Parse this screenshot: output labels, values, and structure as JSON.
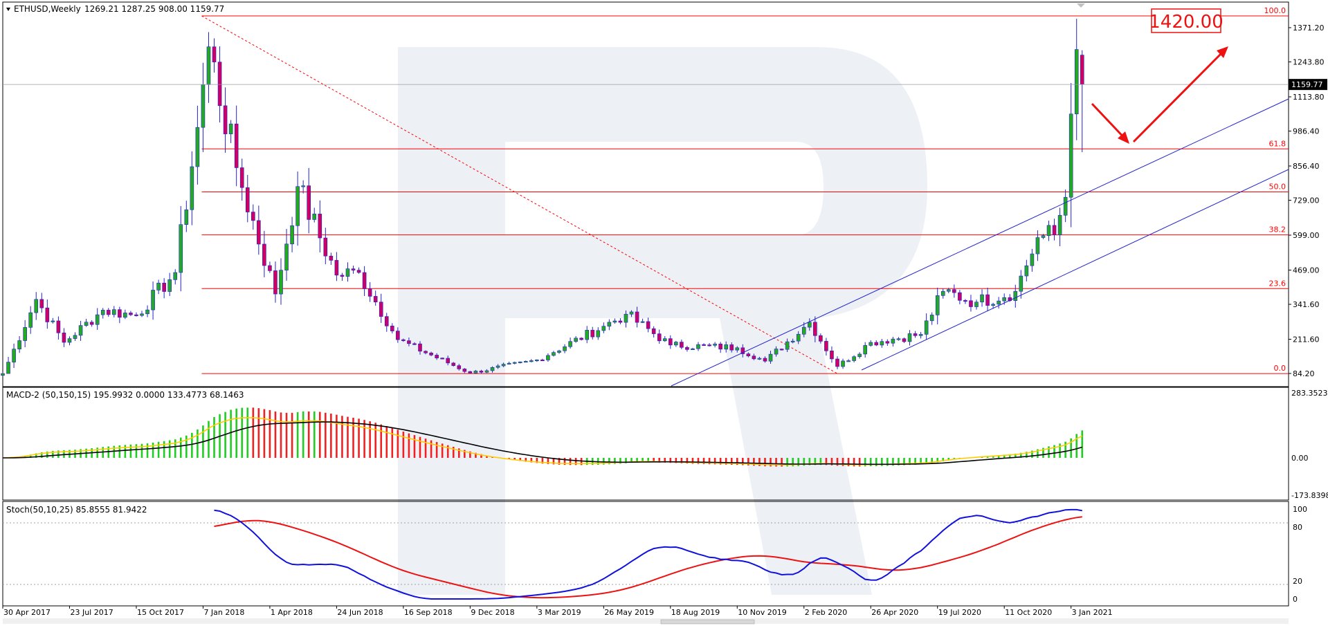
{
  "header": {
    "symbol": "ETHUSD,Weekly",
    "ohlc": "1269.21 1287.25 908.00 1159.77"
  },
  "colors": {
    "background": "#ffffff",
    "frame": "#000000",
    "bull_candle": "#22aa22",
    "bear_candle": "#cc0066",
    "candle_wick": "#2222cc",
    "fib_line": "#ff0000",
    "trend_line": "#2222cc",
    "arrow": "#ee1111",
    "macd_signal": "#ffcc00",
    "macd_line": "#000000",
    "hist_up": "#22cc22",
    "hist_down": "#ee2222",
    "stoch_main": "#1111dd",
    "stoch_signal": "#ee1111",
    "watermark": "#dfe5ee"
  },
  "main": {
    "price_labels": [
      "1371.20",
      "1243.80",
      "1113.80",
      "986.40",
      "856.40",
      "729.00",
      "599.00",
      "469.00",
      "341.60",
      "211.60",
      "84.20"
    ],
    "current_price": "1159.77",
    "target_label": "1420.00",
    "fib_levels": [
      {
        "label": "100.0",
        "price": 1415
      },
      {
        "label": "61.8",
        "price": 920
      },
      {
        "label": "50.0",
        "price": 760
      },
      {
        "label": "38.2",
        "price": 600
      },
      {
        "label": "23.6",
        "price": 400
      },
      {
        "label": "0.0",
        "price": 84
      }
    ]
  },
  "macd": {
    "label": "MACD-2 (50,150,15) 195.9932 0.0000 133.4773 68.1463",
    "scale": [
      "283.3523",
      "0.00",
      "-173.8398"
    ]
  },
  "stoch": {
    "label": "Stoch(50,10,25) 85.8555 81.9422",
    "scale": [
      "100",
      "80",
      "20",
      "0"
    ]
  },
  "time_labels": [
    "30 Apr 2017",
    "23 Jul 2017",
    "15 Oct 2017",
    "7 Jan 2018",
    "1 Apr 2018",
    "24 Jun 2018",
    "16 Sep 2018",
    "9 Dec 2018",
    "3 Mar 2019",
    "26 May 2019",
    "18 Aug 2019",
    "10 Nov 2019",
    "2 Feb 2020",
    "26 Apr 2020",
    "19 Jul 2020",
    "11 Oct 2020",
    "3 Jan 2021"
  ],
  "chart_data": {
    "type": "candlestick",
    "timeframe": "Weekly",
    "series": [
      {
        "name": "ETHUSD",
        "anchors": [
          {
            "date": "2017-04-30",
            "close": 80
          },
          {
            "date": "2017-06-11",
            "close": 360
          },
          {
            "date": "2017-07-16",
            "close": 200
          },
          {
            "date": "2017-09-03",
            "close": 320
          },
          {
            "date": "2017-10-15",
            "close": 300
          },
          {
            "date": "2017-12-03",
            "close": 460
          },
          {
            "date": "2017-12-31",
            "close": 1000
          },
          {
            "date": "2018-01-14",
            "close": 1300
          },
          {
            "date": "2018-02-18",
            "close": 850
          },
          {
            "date": "2018-04-08",
            "close": 380
          },
          {
            "date": "2018-05-06",
            "close": 780
          },
          {
            "date": "2018-06-24",
            "close": 450
          },
          {
            "date": "2018-07-22",
            "close": 460
          },
          {
            "date": "2018-09-09",
            "close": 210
          },
          {
            "date": "2018-12-09",
            "close": 86
          },
          {
            "date": "2019-03-03",
            "close": 135
          },
          {
            "date": "2019-05-26",
            "close": 260
          },
          {
            "date": "2019-06-23",
            "close": 305
          },
          {
            "date": "2019-08-18",
            "close": 190
          },
          {
            "date": "2019-11-10",
            "close": 180
          },
          {
            "date": "2019-12-15",
            "close": 130
          },
          {
            "date": "2020-02-09",
            "close": 275
          },
          {
            "date": "2020-03-15",
            "close": 110
          },
          {
            "date": "2020-04-26",
            "close": 200
          },
          {
            "date": "2020-06-28",
            "close": 230
          },
          {
            "date": "2020-07-26",
            "close": 390
          },
          {
            "date": "2020-09-06",
            "close": 350
          },
          {
            "date": "2020-10-25",
            "close": 390
          },
          {
            "date": "2020-11-22",
            "close": 590
          },
          {
            "date": "2020-12-13",
            "close": 600
          },
          {
            "date": "2020-12-27",
            "close": 740
          },
          {
            "date": "2021-01-03",
            "close": 1050
          },
          {
            "date": "2021-01-10",
            "close": 1290
          },
          {
            "date": "2021-01-17",
            "close": 1159.77
          }
        ]
      }
    ],
    "last_candle": {
      "open": 1269.21,
      "high": 1287.25,
      "low": 908.0,
      "close": 1159.77
    },
    "fibonacci": {
      "high": 1415,
      "low": 84,
      "levels": [
        "0.0",
        "23.6",
        "38.2",
        "50.0",
        "61.8",
        "100.0"
      ]
    },
    "macd": {
      "params": "50,150,15",
      "values": [
        195.9932,
        0.0,
        133.4773,
        68.1463
      ]
    },
    "stochastic": {
      "params": "50,10,25",
      "main": 85.8555,
      "signal": 81.9422
    },
    "forecast_target": 1420.0,
    "ylim": [
      60,
      1430
    ]
  }
}
